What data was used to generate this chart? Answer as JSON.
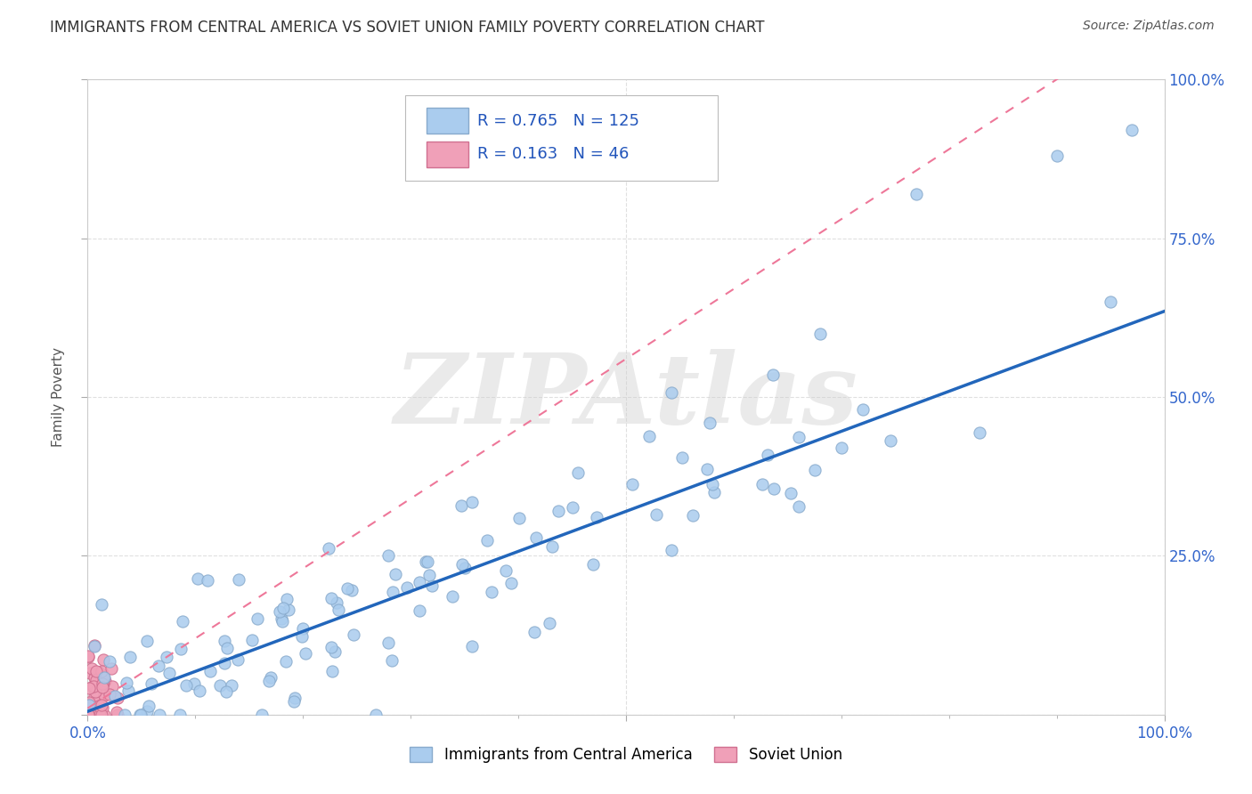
{
  "title": "IMMIGRANTS FROM CENTRAL AMERICA VS SOVIET UNION FAMILY POVERTY CORRELATION CHART",
  "source": "Source: ZipAtlas.com",
  "ylabel": "Family Poverty",
  "blue_R": 0.765,
  "blue_N": 125,
  "pink_R": 0.163,
  "pink_N": 46,
  "blue_color": "#aaccee",
  "blue_edge": "#88aacc",
  "pink_color": "#f0a0b8",
  "pink_edge": "#d07090",
  "blue_line_color": "#2266bb",
  "pink_line_color": "#ee7799",
  "legend_text_color": "#2255bb",
  "watermark": "ZIPAtlas",
  "title_color": "#333333",
  "source_color": "#555555",
  "tick_color": "#3366cc",
  "grid_color": "#e0e0e0",
  "background_color": "#ffffff",
  "xlim": [
    0,
    1
  ],
  "ylim": [
    0,
    1
  ],
  "blue_slope": 0.63,
  "blue_intercept": 0.005,
  "pink_slope": 1.1,
  "pink_intercept": 0.01
}
